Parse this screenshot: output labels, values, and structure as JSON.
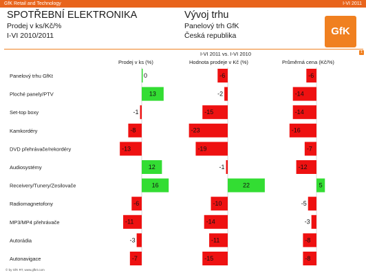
{
  "header": {
    "brand": "GfK Retail and Technology",
    "period": "I-VI 2011",
    "title": "SPOTŘEBNÍ ELEKTRONIKA",
    "subtitle1": "Prodej v ks/Kč/%",
    "subtitle2": "I-VI 2010/2011",
    "right_title": "Vývoj trhu",
    "right_sub1": "Panelový trh GfK",
    "right_sub2": "Česká republika",
    "logo": "GfK",
    "page_number": "1"
  },
  "chart_header": {
    "period_label": "I-VI 2011 vs. I-VI 2010"
  },
  "footer": {
    "text": "© by GfK RT, www.gfkrt.com"
  },
  "colors": {
    "positive": "#33dd33",
    "negative": "#ee1111",
    "accent": "#e8641c"
  },
  "chart_data": {
    "type": "bar",
    "categories": [
      "Panelový trhu GfKt",
      "Ploché panely/PTV",
      "Set-top boxy",
      "Kamkordéry",
      "DVD přehrávače/rekordéry",
      "Audiosystémy",
      "Receivery/Tunery/Zesilovače",
      "Radiomagnetofony",
      "MP3/MP4 přehrávače",
      "Autorádia",
      "Autonavigace"
    ],
    "series": [
      {
        "name": "Prodej v ks (%)",
        "values": [
          0,
          13,
          -1,
          -8,
          -13,
          12,
          16,
          -6,
          -11,
          -3,
          -7
        ]
      },
      {
        "name": "Hodnota prodeje v  Kč (%)",
        "values": [
          -6,
          -2,
          -15,
          -23,
          -19,
          -1,
          22,
          -10,
          -14,
          -11,
          -15
        ]
      },
      {
        "name": "Průměrná cena (Kč/%)",
        "values": [
          -6,
          -14,
          -14,
          -16,
          -7,
          -12,
          5,
          -5,
          -3,
          -8,
          -8
        ]
      }
    ],
    "grid": false,
    "legend": "none"
  }
}
